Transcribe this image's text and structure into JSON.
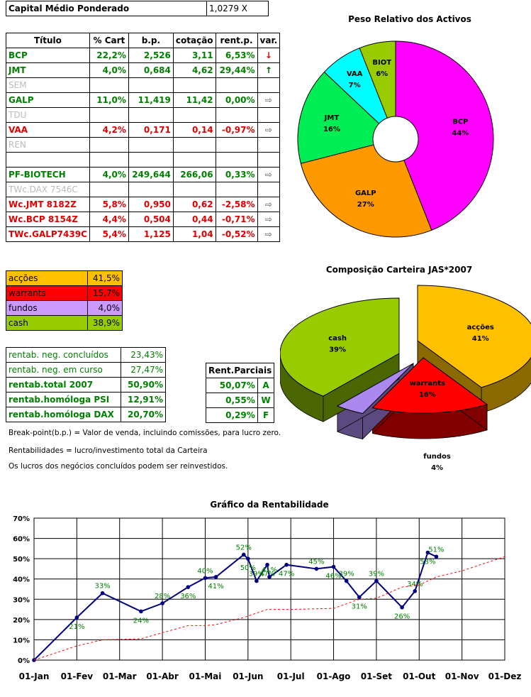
{
  "capital": {
    "label": "Capital Médio Ponderado",
    "value": "1,0279 X"
  },
  "holdings": {
    "headers": [
      "Título",
      "% Cart",
      "b.p.",
      "cotação",
      "rent.p.",
      "var."
    ],
    "rows": [
      {
        "title": "BCP",
        "cart": "22,2%",
        "bp": "2,526",
        "cot": "3,11",
        "rent": "6,53%",
        "var": "down",
        "color": "green"
      },
      {
        "title": "JMT",
        "cart": "4,0%",
        "bp": "0,684",
        "cot": "4,62",
        "rent": "29,44%",
        "var": "up",
        "color": "green"
      },
      {
        "title": "SEM",
        "cart": "",
        "bp": "",
        "cot": "",
        "rent": "",
        "var": "",
        "color": "gray"
      },
      {
        "title": "GALP",
        "cart": "11,0%",
        "bp": "11,419",
        "cot": "11,42",
        "rent": "0,00%",
        "var": "right",
        "color": "green"
      },
      {
        "title": "TDU",
        "cart": "",
        "bp": "",
        "cot": "",
        "rent": "",
        "var": "",
        "color": "gray"
      },
      {
        "title": "VAA",
        "cart": "4,2%",
        "bp": "0,171",
        "cot": "0,14",
        "rent": "-0,97%",
        "var": "right",
        "color": "red"
      },
      {
        "title": "REN",
        "cart": "",
        "bp": "",
        "cot": "",
        "rent": "",
        "var": "",
        "color": "gray"
      },
      {
        "title": "",
        "cart": "",
        "bp": "",
        "cot": "",
        "rent": "",
        "var": "",
        "color": "gray"
      },
      {
        "title": "PF-BIOTECH",
        "cart": "4,0%",
        "bp": "249,644",
        "cot": "266,06",
        "rent": "0,33%",
        "var": "right",
        "color": "green"
      },
      {
        "title": "TWc.DAX 7546C",
        "cart": "",
        "bp": "",
        "cot": "",
        "rent": "",
        "var": "",
        "color": "gray"
      },
      {
        "title": "Wc.JMT 8182Z",
        "cart": "5,8%",
        "bp": "0,950",
        "cot": "0,62",
        "rent": "-2,58%",
        "var": "right",
        "color": "red"
      },
      {
        "title": "Wc.BCP 8154Z",
        "cart": "4,4%",
        "bp": "0,504",
        "cot": "0,44",
        "rent": "-0,71%",
        "var": "right",
        "color": "red"
      },
      {
        "title": "TWc.GALP7439C",
        "cart": "5,4%",
        "bp": "1,125",
        "cot": "1,04",
        "rent": "-0,52%",
        "var": "right",
        "color": "red"
      }
    ]
  },
  "composition_table": [
    {
      "label": "acções",
      "value": "41,5%",
      "color": "#ffc000"
    },
    {
      "label": "warrants",
      "value": "15,7%",
      "color": "#ff0000"
    },
    {
      "label": "fundos",
      "value": "4,0%",
      "color": "#cc99ff"
    },
    {
      "label": "cash",
      "value": "38,9%",
      "color": "#99cc00"
    }
  ],
  "rentab": [
    {
      "label": "rentab. neg. concluídos",
      "value": "23,43%",
      "bold": false
    },
    {
      "label": "rentab. neg. em curso",
      "value": "27,47%",
      "bold": false
    },
    {
      "label": "rentab.total 2007",
      "value": "50,90%",
      "bold": true
    },
    {
      "label": "rentab.homóloga PSI",
      "value": "12,91%",
      "bold": true
    },
    {
      "label": "rentab.homóloga DAX",
      "value": "20,70%",
      "bold": true
    }
  ],
  "parciais": {
    "header": "Rent.Parciais",
    "rows": [
      {
        "value": "50,07%",
        "tag": "A"
      },
      {
        "value": "0,55%",
        "tag": "W"
      },
      {
        "value": "0,29%",
        "tag": "F"
      }
    ]
  },
  "notes": [
    "Break-point(b.p.) = Valor de venda, incluindo comissões, para lucro zero.",
    "Rentabilidades = lucro/investimento total da Carteira",
    "Os lucros dos negócios concluídos podem ser reinvestidos."
  ],
  "chart_data": [
    {
      "type": "pie",
      "title": "Peso Relativo dos Activos",
      "variant": "donut",
      "slices": [
        {
          "label": "BCP",
          "value": 44,
          "text": "44%",
          "color": "#ff00ff"
        },
        {
          "label": "GALP",
          "value": 27,
          "text": "27%",
          "color": "#ff9900"
        },
        {
          "label": "JMT",
          "value": 16,
          "text": "16%",
          "color": "#00ee55"
        },
        {
          "label": "VAA",
          "value": 7,
          "text": "7%",
          "color": "#00ffff"
        },
        {
          "label": "BIOT",
          "value": 6,
          "text": "6%",
          "color": "#99cc00"
        }
      ]
    },
    {
      "type": "pie",
      "title": "Composição Carteira JAS*2007",
      "variant": "3d-exploded",
      "slices": [
        {
          "label": "acções",
          "value": 41,
          "text": "41%",
          "color": "#ffc000"
        },
        {
          "label": "warrants",
          "value": 16,
          "text": "16%",
          "color": "#ff0000"
        },
        {
          "label": "fundos",
          "value": 4,
          "text": "4%",
          "color": "#aa88ee"
        },
        {
          "label": "cash",
          "value": 39,
          "text": "39%",
          "color": "#99cc00"
        }
      ]
    },
    {
      "type": "line",
      "title": "Gráfico da Rentabilidade",
      "xlabel": "",
      "ylabel": "",
      "ylim": [
        0,
        70
      ],
      "yticks": [
        "0%",
        "10%",
        "20%",
        "30%",
        "40%",
        "50%",
        "60%",
        "70%"
      ],
      "xticks": [
        "01-Jan",
        "01-Fev",
        "01-Mar",
        "01-Abr",
        "01-Mai",
        "01-Jun",
        "01-Jul",
        "01-Ago",
        "01-Set",
        "01-Out",
        "01-Nov",
        "01-Dez"
      ],
      "grid": true,
      "series": [
        {
          "color": "#000080",
          "style": "solid",
          "marker": true,
          "points": [
            [
              0,
              0
            ],
            [
              1,
              21
            ],
            [
              1.6,
              33
            ],
            [
              2.5,
              24
            ],
            [
              3,
              28
            ],
            [
              3.6,
              36
            ],
            [
              4,
              40.5
            ],
            [
              4.25,
              41
            ],
            [
              4.9,
              52
            ],
            [
              5,
              50
            ],
            [
              5.2,
              39
            ],
            [
              5.45,
              47
            ],
            [
              5.5,
              41
            ],
            [
              5.9,
              47
            ],
            [
              6.6,
              45
            ],
            [
              7,
              46
            ],
            [
              7.3,
              39
            ],
            [
              7.6,
              31
            ],
            [
              8,
              39
            ],
            [
              8.6,
              26
            ],
            [
              8.9,
              34
            ],
            [
              9.2,
              53
            ],
            [
              9.4,
              51
            ]
          ],
          "labels": [
            null,
            "21%",
            "33%",
            "24%",
            "28%",
            "36%",
            "40%",
            "41%",
            "52%",
            "50%",
            "39%",
            "47%",
            "41%",
            "47%",
            "45%",
            "46%",
            "39%",
            "31%",
            "39%",
            "26%",
            "34%",
            "53%",
            "51%"
          ]
        },
        {
          "color": "#ff0000",
          "style": "dashed",
          "marker": false,
          "points": [
            [
              0,
              0
            ],
            [
              1,
              7
            ],
            [
              1.6,
              10
            ],
            [
              2.5,
              10.5
            ],
            [
              3,
              13.5
            ],
            [
              3.6,
              17
            ],
            [
              4,
              17
            ],
            [
              4.25,
              17.5
            ],
            [
              4.9,
              21
            ],
            [
              5.45,
              25
            ],
            [
              6,
              25
            ],
            [
              7,
              25.5
            ],
            [
              7.6,
              30
            ],
            [
              8,
              30.5
            ],
            [
              8.6,
              36
            ],
            [
              9,
              37
            ],
            [
              9.4,
              41
            ],
            [
              10,
              44
            ],
            [
              11,
              51
            ]
          ]
        }
      ]
    }
  ]
}
